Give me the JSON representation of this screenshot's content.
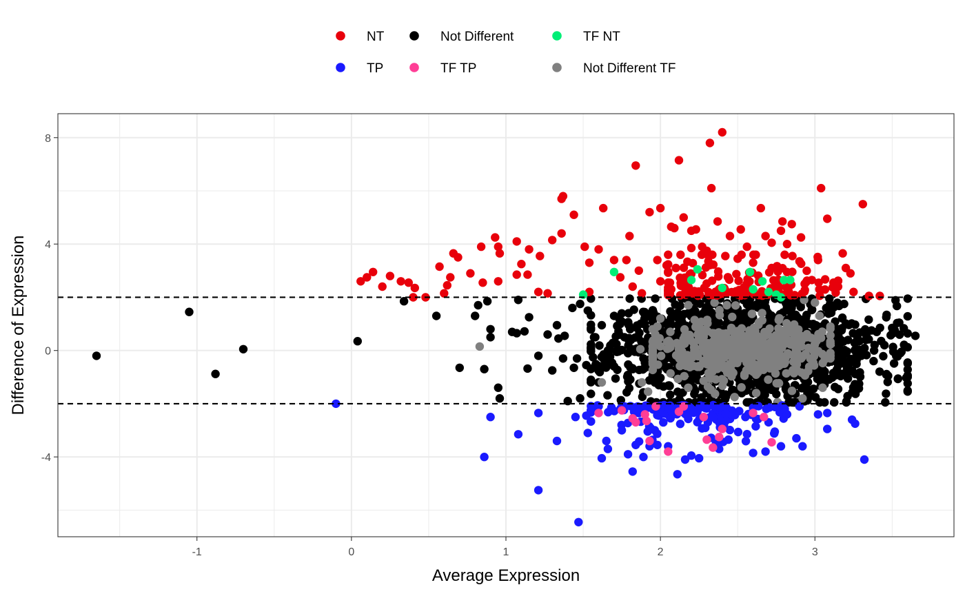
{
  "chart_data": {
    "type": "scatter",
    "title": "",
    "xlabel": "Average Expression",
    "ylabel": "Difference of Expression",
    "xlim": [
      -1.9,
      3.9
    ],
    "ylim": [
      -7.0,
      8.9
    ],
    "x_ticks": [
      -1,
      0,
      1,
      2,
      3
    ],
    "y_ticks": [
      8,
      4,
      0,
      -4
    ],
    "x_tick_labels": [
      "-1",
      "0",
      "1",
      "2",
      "3"
    ],
    "y_tick_labels": [
      "8",
      "4",
      "0",
      "-4"
    ],
    "grid": true,
    "threshold_lines": [
      2,
      -2
    ],
    "legend_position": "top",
    "legend": {
      "row1": [
        {
          "name": "NT",
          "color": "#e8000b"
        },
        {
          "name": "Not Different",
          "color": "#000000"
        },
        {
          "name": "TF NT",
          "color": "#00ee76"
        }
      ],
      "row2": [
        {
          "name": "TP",
          "color": "#1a1aff"
        },
        {
          "name": "TF TP",
          "color": "#ff3e96"
        },
        {
          "name": "Not Different TF",
          "color": "#808080"
        }
      ]
    },
    "series": [
      {
        "name": "Not Different",
        "color": "#000000",
        "generated_cluster": {
          "count": 1500,
          "seed": 11,
          "x_center": 2.55,
          "x_spread": 0.42,
          "x_min": 1.55,
          "x_max": 3.6,
          "y_spread": 0.95,
          "y_min": -1.95,
          "y_max": 1.95
        },
        "points": [
          [
            -1.65,
            -0.2
          ],
          [
            -1.05,
            1.45
          ],
          [
            -0.88,
            -0.88
          ],
          [
            -0.7,
            0.05
          ],
          [
            0.04,
            0.35
          ],
          [
            0.34,
            1.85
          ],
          [
            0.55,
            1.3
          ],
          [
            0.7,
            -0.65
          ],
          [
            0.8,
            1.3
          ],
          [
            0.82,
            1.7
          ],
          [
            0.86,
            -0.7
          ],
          [
            0.88,
            1.85
          ],
          [
            0.9,
            0.8
          ],
          [
            0.9,
            0.5
          ],
          [
            0.95,
            -1.4
          ],
          [
            0.96,
            -1.8
          ],
          [
            1.04,
            0.7
          ],
          [
            1.07,
            0.65
          ],
          [
            1.08,
            1.9
          ],
          [
            1.12,
            0.72
          ],
          [
            1.14,
            -0.68
          ],
          [
            1.15,
            1.25
          ],
          [
            1.21,
            -0.2
          ],
          [
            1.27,
            0.6
          ],
          [
            1.3,
            -0.75
          ],
          [
            1.33,
            0.95
          ],
          [
            1.34,
            0.45
          ],
          [
            1.37,
            -0.3
          ],
          [
            1.38,
            0.55
          ],
          [
            1.43,
            1.6
          ],
          [
            1.44,
            -0.65
          ],
          [
            1.46,
            -0.3
          ],
          [
            1.48,
            1.75
          ],
          [
            1.52,
            -0.55
          ],
          [
            1.53,
            1.5
          ],
          [
            1.57,
            0.5
          ],
          [
            1.6,
            -1.2
          ],
          [
            1.62,
            0.95
          ],
          [
            1.66,
            0.0
          ],
          [
            1.7,
            1.3
          ],
          [
            1.74,
            1.0
          ],
          [
            1.48,
            -1.8
          ],
          [
            1.4,
            -1.9
          ],
          [
            3.65,
            0.55
          ],
          [
            3.56,
            -0.05
          ],
          [
            3.5,
            0.85
          ],
          [
            3.45,
            0.2
          ],
          [
            3.4,
            0.7
          ],
          [
            3.38,
            -0.4
          ],
          [
            3.33,
            0.4
          ],
          [
            3.3,
            -0.2
          ]
        ]
      },
      {
        "name": "Not Different TF",
        "color": "#808080",
        "generated_cluster": {
          "count": 480,
          "seed": 23,
          "x_center": 2.5,
          "x_spread": 0.3,
          "x_min": 1.95,
          "x_max": 3.1,
          "y_spread": 0.55,
          "y_min": -1.9,
          "y_max": 1.9
        },
        "points": [
          [
            0.83,
            0.15
          ],
          [
            1.62,
            -1.2
          ],
          [
            1.87,
            0.05
          ],
          [
            1.88,
            -1.2
          ],
          [
            1.92,
            -1.55
          ],
          [
            1.98,
            0.9
          ],
          [
            2.0,
            1.2
          ],
          [
            2.18,
            1.7
          ],
          [
            2.35,
            1.8
          ],
          [
            2.43,
            1.7
          ],
          [
            2.62,
            -1.6
          ],
          [
            2.92,
            -1.8
          ],
          [
            3.0,
            1.8
          ],
          [
            2.93,
            1.9
          ],
          [
            3.1,
            0.9
          ],
          [
            3.05,
            -1.4
          ],
          [
            2.76,
            -1.95
          ],
          [
            2.48,
            -1.75
          ]
        ]
      },
      {
        "name": "NT",
        "color": "#e8000b",
        "generated_cluster": {
          "count": 150,
          "seed": 37,
          "x_center": 2.55,
          "x_spread": 0.32,
          "x_min": 2.05,
          "x_max": 3.15,
          "y_min": 2.05,
          "y_max": 3.6,
          "y_decay": 1.0
        },
        "points": [
          [
            0.06,
            2.6
          ],
          [
            0.1,
            2.75
          ],
          [
            0.14,
            2.95
          ],
          [
            0.2,
            2.4
          ],
          [
            0.25,
            2.8
          ],
          [
            0.32,
            2.6
          ],
          [
            0.37,
            2.55
          ],
          [
            0.4,
            2.0
          ],
          [
            0.41,
            2.35
          ],
          [
            0.48,
            2.0
          ],
          [
            0.57,
            3.15
          ],
          [
            0.6,
            2.15
          ],
          [
            0.62,
            2.45
          ],
          [
            0.64,
            2.75
          ],
          [
            0.66,
            3.65
          ],
          [
            0.69,
            3.5
          ],
          [
            0.77,
            2.9
          ],
          [
            0.84,
            3.9
          ],
          [
            0.85,
            2.55
          ],
          [
            0.93,
            4.25
          ],
          [
            0.95,
            3.9
          ],
          [
            0.96,
            3.65
          ],
          [
            0.95,
            2.6
          ],
          [
            1.07,
            4.1
          ],
          [
            1.07,
            2.85
          ],
          [
            1.1,
            3.25
          ],
          [
            1.14,
            2.85
          ],
          [
            1.15,
            3.8
          ],
          [
            1.22,
            3.55
          ],
          [
            1.21,
            2.2
          ],
          [
            1.27,
            2.15
          ],
          [
            1.3,
            4.15
          ],
          [
            1.36,
            4.4
          ],
          [
            1.36,
            5.7
          ],
          [
            1.37,
            5.8
          ],
          [
            1.44,
            5.1
          ],
          [
            1.51,
            3.9
          ],
          [
            1.54,
            3.3
          ],
          [
            1.54,
            2.2
          ],
          [
            1.6,
            3.8
          ],
          [
            1.63,
            5.35
          ],
          [
            1.7,
            3.4
          ],
          [
            1.74,
            2.75
          ],
          [
            1.78,
            3.4
          ],
          [
            1.8,
            4.3
          ],
          [
            1.82,
            2.4
          ],
          [
            1.84,
            6.95
          ],
          [
            1.86,
            3.0
          ],
          [
            1.88,
            2.15
          ],
          [
            1.93,
            5.2
          ],
          [
            1.98,
            3.4
          ],
          [
            2.0,
            5.35
          ],
          [
            2.04,
            3.2
          ],
          [
            2.07,
            4.65
          ],
          [
            2.09,
            4.6
          ],
          [
            2.12,
            7.15
          ],
          [
            2.15,
            5.0
          ],
          [
            2.2,
            4.5
          ],
          [
            2.23,
            4.55
          ],
          [
            2.27,
            3.9
          ],
          [
            2.32,
            7.8
          ],
          [
            2.33,
            6.1
          ],
          [
            2.37,
            4.85
          ],
          [
            2.4,
            8.2
          ],
          [
            2.45,
            4.3
          ],
          [
            2.52,
            4.55
          ],
          [
            2.56,
            3.9
          ],
          [
            2.65,
            5.35
          ],
          [
            2.68,
            4.3
          ],
          [
            2.72,
            4.05
          ],
          [
            2.78,
            4.5
          ],
          [
            2.79,
            4.85
          ],
          [
            2.82,
            4.0
          ],
          [
            2.85,
            4.75
          ],
          [
            2.91,
            4.25
          ],
          [
            2.98,
            2.65
          ],
          [
            3.02,
            3.4
          ],
          [
            3.04,
            6.1
          ],
          [
            3.08,
            4.95
          ],
          [
            3.12,
            2.55
          ],
          [
            3.15,
            2.4
          ],
          [
            3.18,
            3.65
          ],
          [
            3.2,
            3.1
          ],
          [
            3.23,
            2.9
          ],
          [
            3.25,
            2.2
          ],
          [
            3.31,
            5.5
          ],
          [
            3.35,
            2.05
          ],
          [
            3.42,
            2.05
          ],
          [
            2.9,
            3.35
          ],
          [
            2.82,
            2.95
          ],
          [
            2.72,
            3.1
          ],
          [
            2.6,
            3.3
          ],
          [
            2.5,
            3.45
          ],
          [
            2.42,
            3.55
          ],
          [
            2.3,
            3.75
          ],
          [
            2.2,
            3.85
          ],
          [
            2.13,
            3.6
          ],
          [
            2.1,
            3.1
          ],
          [
            2.05,
            2.55
          ],
          [
            2.07,
            2.3
          ],
          [
            2.0,
            2.6
          ]
        ]
      },
      {
        "name": "TP",
        "color": "#1a1aff",
        "generated_cluster": {
          "count": 160,
          "seed": 53,
          "x_center": 2.15,
          "x_spread": 0.33,
          "x_min": 1.55,
          "x_max": 2.9,
          "y_min": -3.6,
          "y_max": -2.05,
          "y_decay": 0.8
        },
        "points": [
          [
            -0.1,
            -2.0
          ],
          [
            0.86,
            -4.0
          ],
          [
            0.9,
            -2.5
          ],
          [
            1.08,
            -3.15
          ],
          [
            1.21,
            -5.25
          ],
          [
            1.21,
            -2.35
          ],
          [
            1.33,
            -3.4
          ],
          [
            1.45,
            -2.5
          ],
          [
            1.47,
            -6.45
          ],
          [
            1.52,
            -2.45
          ],
          [
            1.53,
            -3.1
          ],
          [
            1.6,
            -2.1
          ],
          [
            1.62,
            -4.05
          ],
          [
            1.65,
            -3.4
          ],
          [
            1.66,
            -3.7
          ],
          [
            1.75,
            -3.0
          ],
          [
            1.79,
            -3.9
          ],
          [
            1.82,
            -4.55
          ],
          [
            1.84,
            -3.55
          ],
          [
            1.89,
            -4.0
          ],
          [
            1.93,
            -3.6
          ],
          [
            1.98,
            -3.55
          ],
          [
            2.05,
            -3.6
          ],
          [
            2.11,
            -4.65
          ],
          [
            2.16,
            -4.1
          ],
          [
            2.2,
            -3.95
          ],
          [
            2.25,
            -4.05
          ],
          [
            2.36,
            -3.5
          ],
          [
            2.38,
            -3.7
          ],
          [
            2.44,
            -3.35
          ],
          [
            2.6,
            -3.85
          ],
          [
            2.68,
            -3.8
          ],
          [
            2.74,
            -3.05
          ],
          [
            2.78,
            -3.6
          ],
          [
            2.88,
            -3.3
          ],
          [
            2.92,
            -3.6
          ],
          [
            3.02,
            -2.4
          ],
          [
            3.08,
            -2.35
          ],
          [
            3.08,
            -2.95
          ],
          [
            3.24,
            -2.6
          ],
          [
            3.26,
            -2.75
          ],
          [
            3.32,
            -4.1
          ],
          [
            2.9,
            -2.1
          ],
          [
            2.82,
            -2.4
          ],
          [
            2.7,
            -2.7
          ],
          [
            2.55,
            -2.5
          ]
        ]
      },
      {
        "name": "TF NT",
        "color": "#00ee76",
        "points": [
          [
            1.5,
            2.1
          ],
          [
            1.7,
            2.95
          ],
          [
            2.2,
            2.65
          ],
          [
            2.24,
            3.05
          ],
          [
            2.4,
            2.35
          ],
          [
            2.58,
            2.95
          ],
          [
            2.6,
            2.3
          ],
          [
            2.66,
            2.6
          ],
          [
            2.7,
            2.2
          ],
          [
            2.75,
            2.1
          ],
          [
            2.78,
            2.0
          ],
          [
            2.8,
            2.65
          ],
          [
            2.84,
            2.65
          ]
        ]
      },
      {
        "name": "TF TP",
        "color": "#ff3e96",
        "points": [
          [
            1.6,
            -2.35
          ],
          [
            1.75,
            -2.25
          ],
          [
            1.82,
            -2.55
          ],
          [
            1.84,
            -2.7
          ],
          [
            1.9,
            -2.4
          ],
          [
            1.91,
            -2.65
          ],
          [
            1.93,
            -3.4
          ],
          [
            1.97,
            -2.1
          ],
          [
            2.05,
            -3.8
          ],
          [
            2.12,
            -2.3
          ],
          [
            2.15,
            -2.1
          ],
          [
            2.28,
            -2.5
          ],
          [
            2.3,
            -3.35
          ],
          [
            2.34,
            -3.65
          ],
          [
            2.38,
            -3.25
          ],
          [
            2.4,
            -2.95
          ],
          [
            2.6,
            -2.35
          ],
          [
            2.67,
            -2.5
          ],
          [
            2.72,
            -3.45
          ]
        ]
      }
    ]
  }
}
